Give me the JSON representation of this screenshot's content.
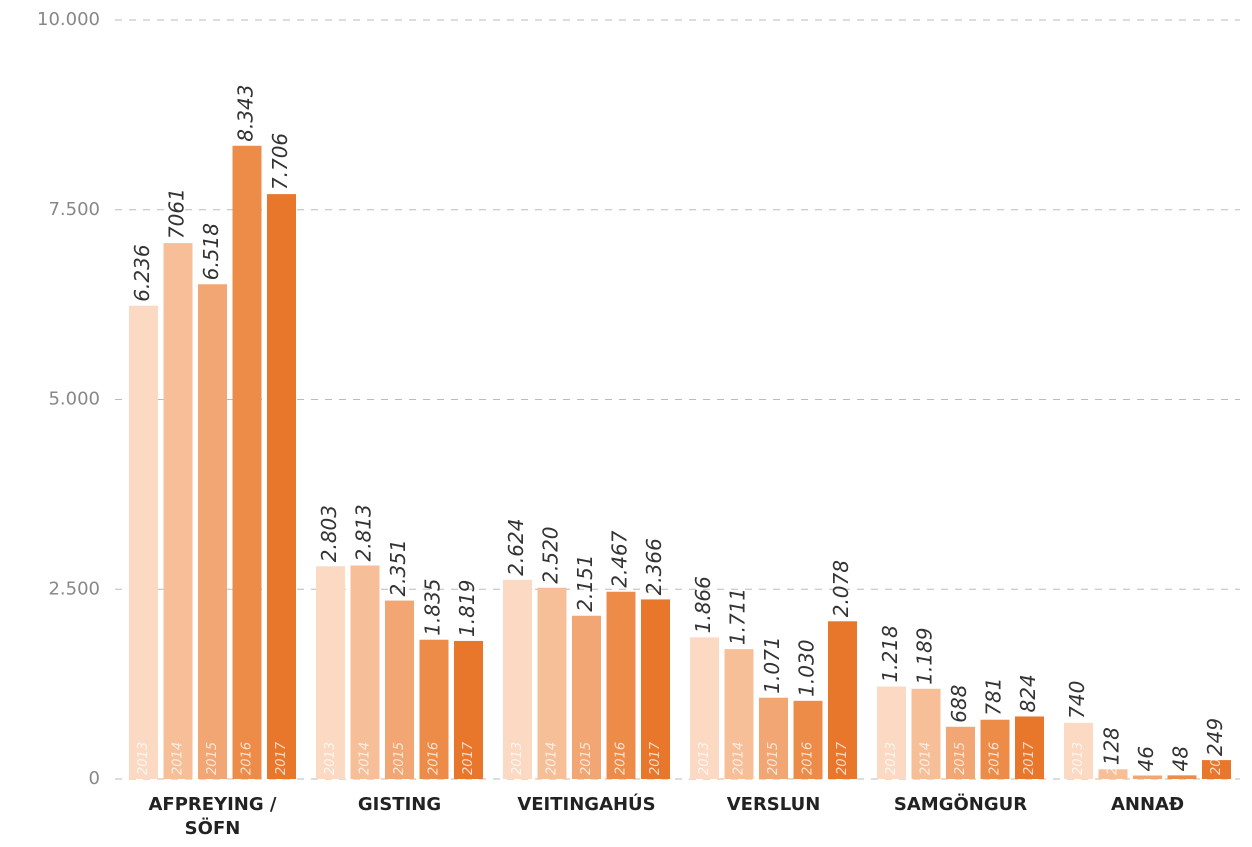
{
  "chart_data": {
    "type": "bar",
    "categories": [
      "AFPREYING / SÖFN",
      "GISTING",
      "VEITINGAHÚS",
      "VERSLUN",
      "SAMGÖNGUR",
      "ANNAÐ"
    ],
    "series": [
      {
        "name": "2013",
        "color": "#fbd9c3",
        "values": [
          6236,
          2803,
          2624,
          1866,
          1218,
          740
        ],
        "value_labels": [
          "6.236",
          "2.803",
          "2.624",
          "1.866",
          "1.218",
          "740"
        ]
      },
      {
        "name": "2014",
        "color": "#f7bf98",
        "values": [
          7061,
          2813,
          2520,
          1711,
          1189,
          128
        ],
        "value_labels": [
          "7061",
          "2.813",
          "2.520",
          "1.711",
          "1.189",
          "128"
        ]
      },
      {
        "name": "2015",
        "color": "#f2a673",
        "values": [
          6518,
          2351,
          2151,
          1071,
          688,
          46
        ],
        "value_labels": [
          "6.518",
          "2.351",
          "2.151",
          "1.071",
          "688",
          "46"
        ]
      },
      {
        "name": "2016",
        "color": "#ed8c48",
        "values": [
          8343,
          1835,
          2467,
          1030,
          781,
          48
        ],
        "value_labels": [
          "8.343",
          "1.835",
          "2.467",
          "1.030",
          "781",
          "48"
        ]
      },
      {
        "name": "2017",
        "color": "#e8762b",
        "values": [
          7706,
          1819,
          2366,
          2078,
          824,
          249
        ],
        "value_labels": [
          "7.706",
          "1.819",
          "2.366",
          "2.078",
          "824",
          "249"
        ]
      }
    ],
    "ylim": [
      0,
      10000
    ],
    "yticks": [
      0,
      {
        "value": 2500,
        "label": "2.500"
      },
      {
        "value": 5000,
        "label": "5.000"
      },
      {
        "value": 7500,
        "label": "7.500"
      },
      {
        "value": 10000,
        "label": "10.000"
      }
    ],
    "grid": true
  }
}
